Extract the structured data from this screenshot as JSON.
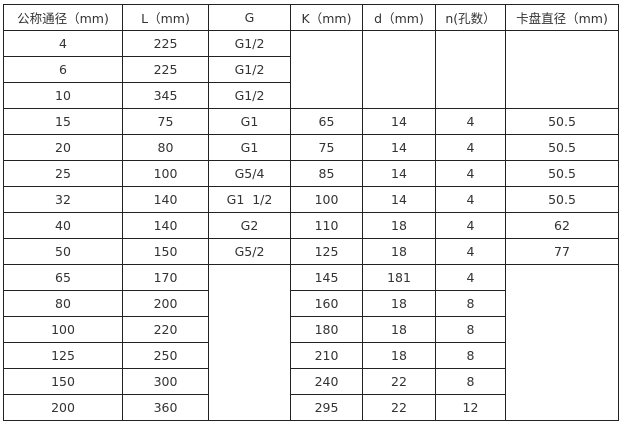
{
  "headers": [
    "公称通径（mm)",
    "L（mm)",
    "G",
    "K（mm)",
    "d（mm)",
    "n(孔数）",
    "卡盘直径（mm)"
  ],
  "rows": [
    {
      "dn": "4",
      "l": "225",
      "g": "G1/2"
    },
    {
      "dn": "6",
      "l": "225",
      "g": "G1/2"
    },
    {
      "dn": "10",
      "l": "345",
      "g": "G1/2"
    },
    {
      "dn": "15",
      "l": "75",
      "g": "G1",
      "k": "65",
      "d": "14",
      "n": "4",
      "chuck": "50.5"
    },
    {
      "dn": "20",
      "l": "80",
      "g": "G1",
      "k": "75",
      "d": "14",
      "n": "4",
      "chuck": "50.5"
    },
    {
      "dn": "25",
      "l": "100",
      "g": "G5/4",
      "k": "85",
      "d": "14",
      "n": "4",
      "chuck": "50.5"
    },
    {
      "dn": "32",
      "l": "140",
      "g": "G1  1/2",
      "k": "100",
      "d": "14",
      "n": "4",
      "chuck": "50.5"
    },
    {
      "dn": "40",
      "l": "140",
      "g": "G2",
      "k": "110",
      "d": "18",
      "n": "4",
      "chuck": "62"
    },
    {
      "dn": "50",
      "l": "150",
      "g": "G5/2",
      "k": "125",
      "d": "18",
      "n": "4",
      "chuck": "77"
    },
    {
      "dn": "65",
      "l": "170",
      "k": "145",
      "d": "181",
      "n": "4"
    },
    {
      "dn": "80",
      "l": "200",
      "k": "160",
      "d": "18",
      "n": "8"
    },
    {
      "dn": "100",
      "l": "220",
      "k": "180",
      "d": "18",
      "n": "8"
    },
    {
      "dn": "125",
      "l": "250",
      "k": "210",
      "d": "18",
      "n": "8"
    },
    {
      "dn": "150",
      "l": "300",
      "k": "240",
      "d": "22",
      "n": "8"
    },
    {
      "dn": "200",
      "l": "360",
      "k": "295",
      "d": "22",
      "n": "12"
    }
  ]
}
